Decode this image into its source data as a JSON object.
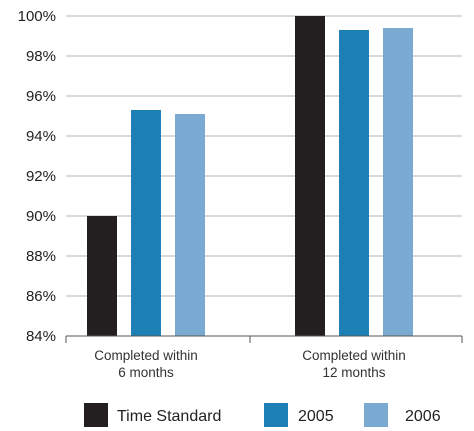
{
  "chart_data": {
    "type": "bar",
    "categories": [
      [
        "Completed within",
        "6 months"
      ],
      [
        "Completed within",
        "12 months"
      ]
    ],
    "series": [
      {
        "name": "Time Standard",
        "color": "#231f20",
        "values": [
          90.0,
          100.0
        ]
      },
      {
        "name": "2005",
        "color": "#1d80b5",
        "values": [
          95.3,
          99.3
        ]
      },
      {
        "name": "2006",
        "color": "#7aaad2",
        "values": [
          95.1,
          99.4
        ]
      }
    ],
    "y_ticks": [
      "84%",
      "86%",
      "88%",
      "90%",
      "92%",
      "94%",
      "96%",
      "98%",
      "100%"
    ],
    "ylim": [
      84,
      100
    ],
    "grid": "horizontal",
    "legend_position": "bottom"
  }
}
